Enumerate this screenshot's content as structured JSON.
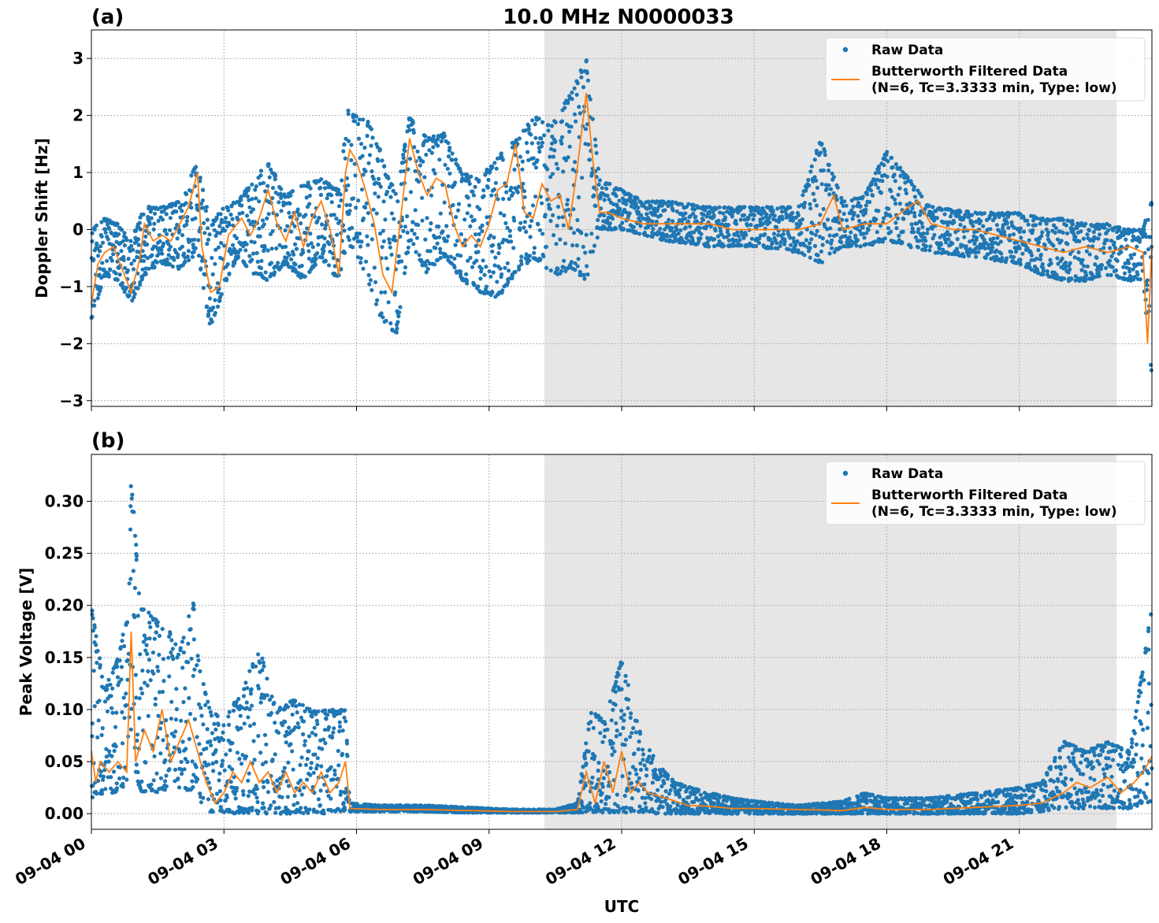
{
  "figure": {
    "title": "10.0 MHz N0000033",
    "xlabel": "UTC",
    "shaded_interval_hours": [
      10.25,
      23.2
    ]
  },
  "legend": {
    "raw_label": "Raw Data",
    "filtered_label_line1": "Butterworth Filtered Data",
    "filtered_label_line2": "(N=6, Tc=3.3333 min, Type: low)"
  },
  "colors": {
    "raw": "#1f77b4",
    "filtered": "#ff7f0e",
    "shade": "#e6e6e6",
    "grid": "#b0b0b0"
  },
  "x_ticks": [
    {
      "hour": 0,
      "label": "09-04 00"
    },
    {
      "hour": 3,
      "label": "09-04 03"
    },
    {
      "hour": 6,
      "label": "09-04 06"
    },
    {
      "hour": 9,
      "label": "09-04 09"
    },
    {
      "hour": 12,
      "label": "09-04 12"
    },
    {
      "hour": 15,
      "label": "09-04 15"
    },
    {
      "hour": 18,
      "label": "09-04 18"
    },
    {
      "hour": 21,
      "label": "09-04 21"
    }
  ],
  "chart_data": [
    {
      "type": "scatter",
      "panel_label": "(a)",
      "ylabel": "Doppler Shift [Hz]",
      "xlim_hours": [
        0,
        24
      ],
      "ylim": [
        -3.1,
        3.5
      ],
      "y_ticks": [
        {
          "value": 3,
          "label": "3"
        },
        {
          "value": 2,
          "label": "2"
        },
        {
          "value": 1,
          "label": "1"
        },
        {
          "value": 0,
          "label": "0"
        },
        {
          "value": -1,
          "label": "−1"
        },
        {
          "value": -2,
          "label": "−2"
        },
        {
          "value": -3,
          "label": "−3"
        }
      ],
      "series": [
        {
          "name": "Raw Data",
          "kind": "envelope",
          "x_hours": [
            0,
            0.3,
            0.6,
            0.9,
            1.2,
            1.6,
            2.0,
            2.4,
            2.7,
            3.0,
            3.3,
            3.7,
            4.0,
            4.4,
            4.8,
            5.2,
            5.6,
            5.8,
            6.2,
            6.5,
            6.9,
            7.2,
            7.6,
            8.0,
            8.4,
            8.8,
            9.2,
            9.6,
            10.0,
            10.5,
            10.9,
            11.2,
            11.5,
            12.0,
            12.5,
            13.0,
            14.0,
            15.0,
            16.0,
            16.5,
            17.0,
            17.5,
            18.0,
            18.5,
            19.0,
            20.0,
            21.0,
            21.5,
            22.0,
            22.5,
            23.0,
            23.5,
            23.8,
            24.0
          ],
          "low": [
            -1.6,
            -0.8,
            -0.9,
            -1.3,
            -0.8,
            -0.6,
            -0.7,
            -0.4,
            -1.8,
            -1.0,
            -0.5,
            -0.8,
            -0.9,
            -0.6,
            -0.9,
            -0.5,
            -0.9,
            -0.2,
            -0.8,
            -1.5,
            -1.9,
            -0.2,
            -0.8,
            -0.5,
            -0.9,
            -1.1,
            -1.2,
            -0.8,
            -0.5,
            -0.8,
            -0.7,
            -0.9,
            0.0,
            0.0,
            -0.1,
            -0.2,
            -0.3,
            -0.3,
            -0.4,
            -0.6,
            -0.3,
            -0.3,
            -0.2,
            -0.3,
            -0.4,
            -0.5,
            -0.6,
            -0.8,
            -0.9,
            -0.9,
            -0.8,
            -0.9,
            -0.9,
            -2.7
          ],
          "high": [
            0.0,
            0.2,
            0.1,
            -0.2,
            0.4,
            0.4,
            0.5,
            1.2,
            0.1,
            0.4,
            0.5,
            0.9,
            1.2,
            0.6,
            0.8,
            0.9,
            0.7,
            2.1,
            2.0,
            1.5,
            0.6,
            2.0,
            1.6,
            1.7,
            1.0,
            0.9,
            1.3,
            1.6,
            2.0,
            1.9,
            2.5,
            3.0,
            0.9,
            0.7,
            0.5,
            0.5,
            0.4,
            0.4,
            0.4,
            1.6,
            0.5,
            0.6,
            1.4,
            0.9,
            0.4,
            0.3,
            0.3,
            0.2,
            0.2,
            0.1,
            0.1,
            0.0,
            0.0,
            0.6
          ]
        },
        {
          "name": "Butterworth Filtered Data\n(N=6, Tc=3.3333 min, Type: low)",
          "x_hours": [
            0,
            0.15,
            0.3,
            0.5,
            0.7,
            0.9,
            1.1,
            1.2,
            1.4,
            1.6,
            1.8,
            2.0,
            2.2,
            2.4,
            2.5,
            2.7,
            2.9,
            3.1,
            3.4,
            3.6,
            3.8,
            4.0,
            4.2,
            4.4,
            4.6,
            4.8,
            5.0,
            5.2,
            5.4,
            5.6,
            5.75,
            5.85,
            6.0,
            6.2,
            6.4,
            6.6,
            6.8,
            7.0,
            7.2,
            7.4,
            7.6,
            7.8,
            8.0,
            8.2,
            8.4,
            8.6,
            8.8,
            9.0,
            9.2,
            9.4,
            9.6,
            9.8,
            10.0,
            10.2,
            10.4,
            10.6,
            10.8,
            11.0,
            11.2,
            11.35,
            11.5,
            11.7,
            12.0,
            12.5,
            13.0,
            13.5,
            14.0,
            14.5,
            15.0,
            15.5,
            16.0,
            16.5,
            16.8,
            17.0,
            17.5,
            18.0,
            18.5,
            18.7,
            19.0,
            19.5,
            20.0,
            20.5,
            21.0,
            21.5,
            22.0,
            22.5,
            23.0,
            23.5,
            23.8,
            23.9,
            24.0
          ],
          "y": [
            -1.3,
            -0.6,
            -0.4,
            -0.3,
            -0.7,
            -1.1,
            -0.5,
            0.1,
            -0.2,
            -0.1,
            -0.2,
            0.1,
            0.4,
            1.0,
            -0.3,
            -1.1,
            -1.0,
            -0.1,
            0.2,
            -0.1,
            0.2,
            0.7,
            0.1,
            -0.2,
            0.3,
            -0.3,
            0.2,
            0.5,
            0.0,
            -0.8,
            1.0,
            1.4,
            1.2,
            0.7,
            0.1,
            -0.8,
            -1.1,
            0.2,
            1.6,
            1.0,
            0.6,
            0.9,
            0.8,
            0.1,
            -0.3,
            -0.1,
            -0.3,
            0.1,
            0.7,
            0.8,
            1.5,
            0.3,
            0.2,
            0.8,
            0.5,
            0.6,
            0.0,
            1.1,
            2.4,
            1.2,
            0.3,
            0.3,
            0.2,
            0.1,
            0.1,
            0.1,
            0.1,
            0.0,
            0.0,
            0.0,
            0.0,
            0.1,
            0.6,
            0.0,
            0.1,
            0.1,
            0.4,
            0.5,
            0.1,
            0.0,
            0.0,
            -0.1,
            -0.2,
            -0.3,
            -0.4,
            -0.3,
            -0.4,
            -0.3,
            -0.4,
            -2.0,
            -0.3
          ]
        }
      ]
    },
    {
      "type": "scatter",
      "panel_label": "(b)",
      "ylabel": "Peak Voltage [V]",
      "xlim_hours": [
        0,
        24
      ],
      "ylim": [
        -0.015,
        0.345
      ],
      "y_ticks": [
        {
          "value": 0.3,
          "label": "0.30"
        },
        {
          "value": 0.25,
          "label": "0.25"
        },
        {
          "value": 0.2,
          "label": "0.20"
        },
        {
          "value": 0.15,
          "label": "0.15"
        },
        {
          "value": 0.1,
          "label": "0.10"
        },
        {
          "value": 0.05,
          "label": "0.05"
        },
        {
          "value": 0.0,
          "label": "0.00"
        }
      ],
      "series": [
        {
          "name": "Raw Data",
          "kind": "envelope",
          "x_hours": [
            0,
            0.3,
            0.6,
            0.85,
            0.9,
            1.1,
            1.4,
            1.7,
            2.0,
            2.3,
            2.5,
            2.7,
            3.0,
            3.4,
            3.8,
            4.2,
            4.6,
            5.0,
            5.4,
            5.75,
            5.85,
            6.5,
            7.5,
            8.5,
            9.5,
            10.5,
            11.0,
            11.3,
            11.6,
            12.0,
            12.4,
            12.8,
            13.2,
            13.6,
            14.0,
            14.5,
            15.0,
            16.0,
            17.0,
            17.5,
            18.0,
            19.0,
            20.0,
            21.0,
            21.5,
            22.0,
            22.5,
            23.0,
            23.5,
            24.0
          ],
          "low": [
            0.015,
            0.02,
            0.02,
            0.03,
            0.05,
            0.02,
            0.02,
            0.02,
            0.02,
            0.02,
            0.01,
            0.0,
            0.0,
            0.0,
            0.0,
            0.0,
            0.0,
            0.0,
            0.0,
            0.003,
            0.002,
            0.002,
            0.002,
            0.001,
            0.001,
            0.001,
            0.001,
            0.001,
            0.001,
            0.001,
            0.001,
            0.0,
            0.0,
            0.0,
            0.0,
            0.0,
            0.0,
            0.0,
            0.0,
            0.0,
            0.0,
            0.0,
            0.0,
            0.0,
            0.002,
            0.005,
            0.005,
            0.005,
            0.005,
            0.01
          ],
          "high": [
            0.2,
            0.12,
            0.15,
            0.2,
            0.33,
            0.2,
            0.19,
            0.18,
            0.16,
            0.21,
            0.13,
            0.1,
            0.09,
            0.12,
            0.16,
            0.1,
            0.11,
            0.1,
            0.1,
            0.1,
            0.01,
            0.008,
            0.008,
            0.006,
            0.004,
            0.004,
            0.01,
            0.1,
            0.09,
            0.15,
            0.08,
            0.05,
            0.03,
            0.025,
            0.02,
            0.015,
            0.012,
            0.008,
            0.012,
            0.02,
            0.015,
            0.015,
            0.02,
            0.025,
            0.03,
            0.07,
            0.06,
            0.07,
            0.06,
            0.2
          ]
        },
        {
          "name": "Butterworth Filtered Data\n(N=6, Tc=3.3333 min, Type: low)",
          "x_hours": [
            0,
            0.1,
            0.2,
            0.4,
            0.6,
            0.8,
            0.9,
            1.0,
            1.2,
            1.4,
            1.6,
            1.8,
            2.0,
            2.2,
            2.4,
            2.6,
            2.8,
            3.0,
            3.2,
            3.4,
            3.6,
            3.8,
            4.0,
            4.2,
            4.4,
            4.6,
            4.8,
            5.0,
            5.2,
            5.4,
            5.6,
            5.75,
            5.85,
            6.5,
            7.5,
            8.5,
            9.5,
            10.5,
            11.0,
            11.2,
            11.4,
            11.6,
            11.8,
            12.0,
            12.2,
            12.4,
            12.6,
            13.0,
            13.5,
            14.0,
            14.5,
            15.0,
            16.0,
            17.0,
            17.5,
            18.0,
            19.0,
            20.0,
            21.0,
            21.5,
            22.0,
            22.3,
            22.6,
            23.0,
            23.3,
            23.6,
            23.8,
            24.0
          ],
          "y": [
            0.06,
            0.03,
            0.05,
            0.04,
            0.05,
            0.04,
            0.175,
            0.05,
            0.08,
            0.06,
            0.1,
            0.05,
            0.07,
            0.09,
            0.06,
            0.03,
            0.01,
            0.02,
            0.04,
            0.03,
            0.05,
            0.03,
            0.04,
            0.02,
            0.04,
            0.02,
            0.03,
            0.02,
            0.04,
            0.02,
            0.03,
            0.05,
            0.005,
            0.004,
            0.004,
            0.003,
            0.002,
            0.002,
            0.004,
            0.04,
            0.01,
            0.05,
            0.02,
            0.06,
            0.02,
            0.03,
            0.02,
            0.015,
            0.008,
            0.007,
            0.005,
            0.005,
            0.004,
            0.003,
            0.006,
            0.004,
            0.004,
            0.006,
            0.008,
            0.01,
            0.02,
            0.03,
            0.025,
            0.035,
            0.02,
            0.03,
            0.04,
            0.055
          ]
        }
      ]
    }
  ]
}
